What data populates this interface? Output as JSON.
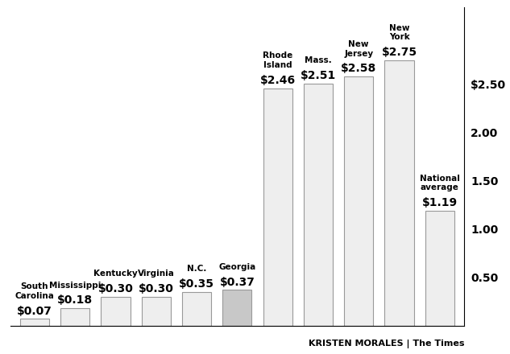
{
  "chart_data": {
    "type": "bar",
    "categories": [
      "South Carolina",
      "Mississippi",
      "Kentucky",
      "Virginia",
      "N.C.",
      "Georgia",
      "Rhode Island",
      "Mass.",
      "New Jersey",
      "New York",
      "National average"
    ],
    "values": [
      0.07,
      0.18,
      0.3,
      0.3,
      0.35,
      0.37,
      2.46,
      2.51,
      2.58,
      2.75,
      1.19
    ],
    "value_labels": [
      "$0.07",
      "$0.18",
      "$0.30",
      "$0.30",
      "$0.35",
      "$0.37",
      "$2.46",
      "$2.51",
      "$2.58",
      "$2.75",
      "$1.19"
    ],
    "data_labels": true,
    "colors": [
      "#eeeeee",
      "#eeeeee",
      "#eeeeee",
      "#eeeeee",
      "#eeeeee",
      "#c8c8c8",
      "#eeeeee",
      "#eeeeee",
      "#eeeeee",
      "#eeeeee",
      "#eeeeee"
    ],
    "ylim": [
      0,
      3.3
    ],
    "yticks": [
      {
        "value": 0.5,
        "label": "0.50"
      },
      {
        "value": 1.0,
        "label": "1.00"
      },
      {
        "value": 1.5,
        "label": "1.50"
      },
      {
        "value": 2.0,
        "label": "2.00"
      },
      {
        "value": 2.5,
        "label": "$2.50"
      }
    ],
    "tick_labels": "y",
    "grid": false,
    "credit": "KRISTEN MORALES | The Times"
  }
}
